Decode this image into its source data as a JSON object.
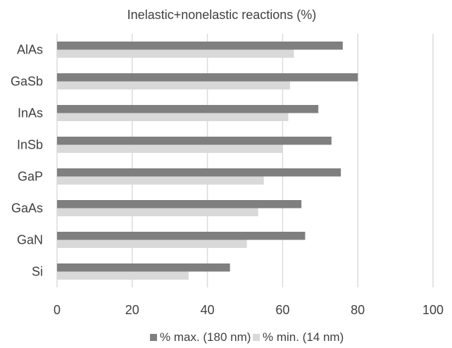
{
  "chart_data": {
    "type": "bar",
    "orientation": "horizontal",
    "title": "Inelastic+nonelastic reactions (%)",
    "xlabel": "",
    "ylabel": "",
    "categories": [
      "AlAs",
      "GaSb",
      "InAs",
      "InSb",
      "GaP",
      "GaAs",
      "GaN",
      "Si"
    ],
    "series": [
      {
        "name": "% max. (180 nm)",
        "color": "#7f7f7f",
        "values": [
          76,
          80,
          69.5,
          73,
          75.5,
          65,
          66,
          46
        ]
      },
      {
        "name": "% min. (14 nm)",
        "color": "#d9d9d9",
        "values": [
          63,
          62,
          61.5,
          60,
          55,
          53.5,
          50.5,
          35
        ]
      }
    ],
    "xlim": [
      0,
      100
    ],
    "xticks": [
      "0",
      "20",
      "40",
      "60",
      "80",
      "100"
    ],
    "grid": true,
    "legend_position": "bottom"
  }
}
